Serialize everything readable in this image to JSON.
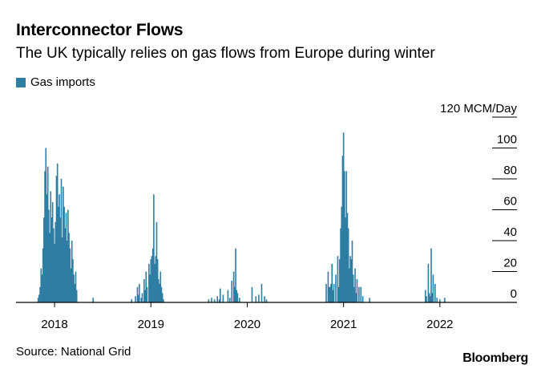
{
  "header": {
    "title": "Interconnector Flows",
    "subtitle": "The UK typically relies on gas flows from Europe during winter"
  },
  "legend": {
    "label": "Gas imports",
    "color": "#2e7ea3"
  },
  "footer": {
    "source": "Source: National Grid",
    "brand": "Bloomberg"
  },
  "chart_data": {
    "type": "bar",
    "title": "Interconnector Flows",
    "ylabel": "MCM/Day",
    "ylim": [
      0,
      120
    ],
    "y_ticks": [
      {
        "value": 120,
        "label": "120 MCM/Day"
      },
      {
        "value": 100,
        "label": "100"
      },
      {
        "value": 80,
        "label": "80"
      },
      {
        "value": 60,
        "label": "60"
      },
      {
        "value": 40,
        "label": "40"
      },
      {
        "value": 20,
        "label": "20"
      },
      {
        "value": 0,
        "label": "0"
      }
    ],
    "xlim": [
      2017.6,
      2022.8
    ],
    "x_ticks": [
      {
        "value": 2018.0,
        "label": "2018"
      },
      {
        "value": 2019.0,
        "label": "2019"
      },
      {
        "value": 2020.0,
        "label": "2020"
      },
      {
        "value": 2021.0,
        "label": "2021"
      },
      {
        "value": 2022.0,
        "label": "2022"
      }
    ],
    "series": [
      {
        "name": "Gas imports",
        "color": "#2e7ea3",
        "points": [
          [
            2017.83,
            3
          ],
          [
            2017.84,
            5
          ],
          [
            2017.85,
            10
          ],
          [
            2017.86,
            22
          ],
          [
            2017.87,
            18
          ],
          [
            2017.88,
            35
          ],
          [
            2017.89,
            55
          ],
          [
            2017.9,
            85
          ],
          [
            2017.91,
            100
          ],
          [
            2017.92,
            70
          ],
          [
            2017.93,
            88
          ],
          [
            2017.94,
            60
          ],
          [
            2017.95,
            45
          ],
          [
            2017.96,
            72
          ],
          [
            2017.97,
            55
          ],
          [
            2017.98,
            65
          ],
          [
            2017.99,
            48
          ],
          [
            2018.0,
            38
          ],
          [
            2018.01,
            52
          ],
          [
            2018.02,
            82
          ],
          [
            2018.03,
            90
          ],
          [
            2018.04,
            62
          ],
          [
            2018.05,
            70
          ],
          [
            2018.06,
            55
          ],
          [
            2018.07,
            80
          ],
          [
            2018.08,
            42
          ],
          [
            2018.09,
            75
          ],
          [
            2018.1,
            62
          ],
          [
            2018.11,
            48
          ],
          [
            2018.12,
            58
          ],
          [
            2018.13,
            40
          ],
          [
            2018.14,
            60
          ],
          [
            2018.15,
            45
          ],
          [
            2018.16,
            35
          ],
          [
            2018.17,
            22
          ],
          [
            2018.18,
            40
          ],
          [
            2018.19,
            28
          ],
          [
            2018.2,
            18
          ],
          [
            2018.21,
            12
          ],
          [
            2018.22,
            20
          ],
          [
            2018.23,
            8
          ],
          [
            2018.4,
            3
          ],
          [
            2018.8,
            2
          ],
          [
            2018.84,
            4
          ],
          [
            2018.86,
            10
          ],
          [
            2018.87,
            5
          ],
          [
            2018.88,
            12
          ],
          [
            2018.9,
            3
          ],
          [
            2018.91,
            6
          ],
          [
            2018.93,
            15
          ],
          [
            2018.94,
            8
          ],
          [
            2018.95,
            20
          ],
          [
            2018.96,
            10
          ],
          [
            2018.98,
            25
          ],
          [
            2018.99,
            18
          ],
          [
            2019.0,
            28
          ],
          [
            2019.01,
            30
          ],
          [
            2019.02,
            35
          ],
          [
            2019.03,
            70
          ],
          [
            2019.04,
            25
          ],
          [
            2019.05,
            30
          ],
          [
            2019.06,
            52
          ],
          [
            2019.07,
            28
          ],
          [
            2019.08,
            15
          ],
          [
            2019.09,
            12
          ],
          [
            2019.1,
            20
          ],
          [
            2019.11,
            10
          ],
          [
            2019.12,
            6
          ],
          [
            2019.13,
            2
          ],
          [
            2019.6,
            2
          ],
          [
            2019.63,
            3
          ],
          [
            2019.66,
            2
          ],
          [
            2019.69,
            4
          ],
          [
            2019.71,
            2
          ],
          [
            2019.72,
            9
          ],
          [
            2019.75,
            5
          ],
          [
            2019.8,
            8
          ],
          [
            2019.82,
            3
          ],
          [
            2019.84,
            14
          ],
          [
            2019.86,
            20
          ],
          [
            2019.87,
            10
          ],
          [
            2019.88,
            35
          ],
          [
            2019.89,
            8
          ],
          [
            2019.9,
            6
          ],
          [
            2019.92,
            3
          ],
          [
            2020.05,
            10
          ],
          [
            2020.09,
            4
          ],
          [
            2020.12,
            5
          ],
          [
            2020.15,
            12
          ],
          [
            2020.18,
            4
          ],
          [
            2020.2,
            2
          ],
          [
            2020.82,
            12
          ],
          [
            2020.84,
            20
          ],
          [
            2020.85,
            10
          ],
          [
            2020.86,
            10
          ],
          [
            2020.87,
            12
          ],
          [
            2020.88,
            25
          ],
          [
            2020.89,
            8
          ],
          [
            2020.9,
            12
          ],
          [
            2020.92,
            18
          ],
          [
            2020.94,
            30
          ],
          [
            2020.95,
            10
          ],
          [
            2020.96,
            28
          ],
          [
            2020.97,
            48
          ],
          [
            2020.98,
            62
          ],
          [
            2020.99,
            95
          ],
          [
            2021.0,
            110
          ],
          [
            2021.01,
            85
          ],
          [
            2021.02,
            55
          ],
          [
            2021.03,
            85
          ],
          [
            2021.04,
            58
          ],
          [
            2021.05,
            48
          ],
          [
            2021.06,
            22
          ],
          [
            2021.07,
            30
          ],
          [
            2021.08,
            28
          ],
          [
            2021.09,
            40
          ],
          [
            2021.1,
            18
          ],
          [
            2021.11,
            10
          ],
          [
            2021.12,
            22
          ],
          [
            2021.13,
            6
          ],
          [
            2021.14,
            15
          ],
          [
            2021.16,
            10
          ],
          [
            2021.18,
            10
          ],
          [
            2021.2,
            4
          ],
          [
            2021.27,
            3
          ],
          [
            2021.85,
            8
          ],
          [
            2021.86,
            4
          ],
          [
            2021.88,
            25
          ],
          [
            2021.89,
            6
          ],
          [
            2021.9,
            4
          ],
          [
            2021.91,
            35
          ],
          [
            2021.92,
            6
          ],
          [
            2021.93,
            18
          ],
          [
            2021.95,
            12
          ],
          [
            2021.97,
            3
          ],
          [
            2022.0,
            2
          ],
          [
            2022.05,
            3
          ]
        ]
      }
    ]
  }
}
